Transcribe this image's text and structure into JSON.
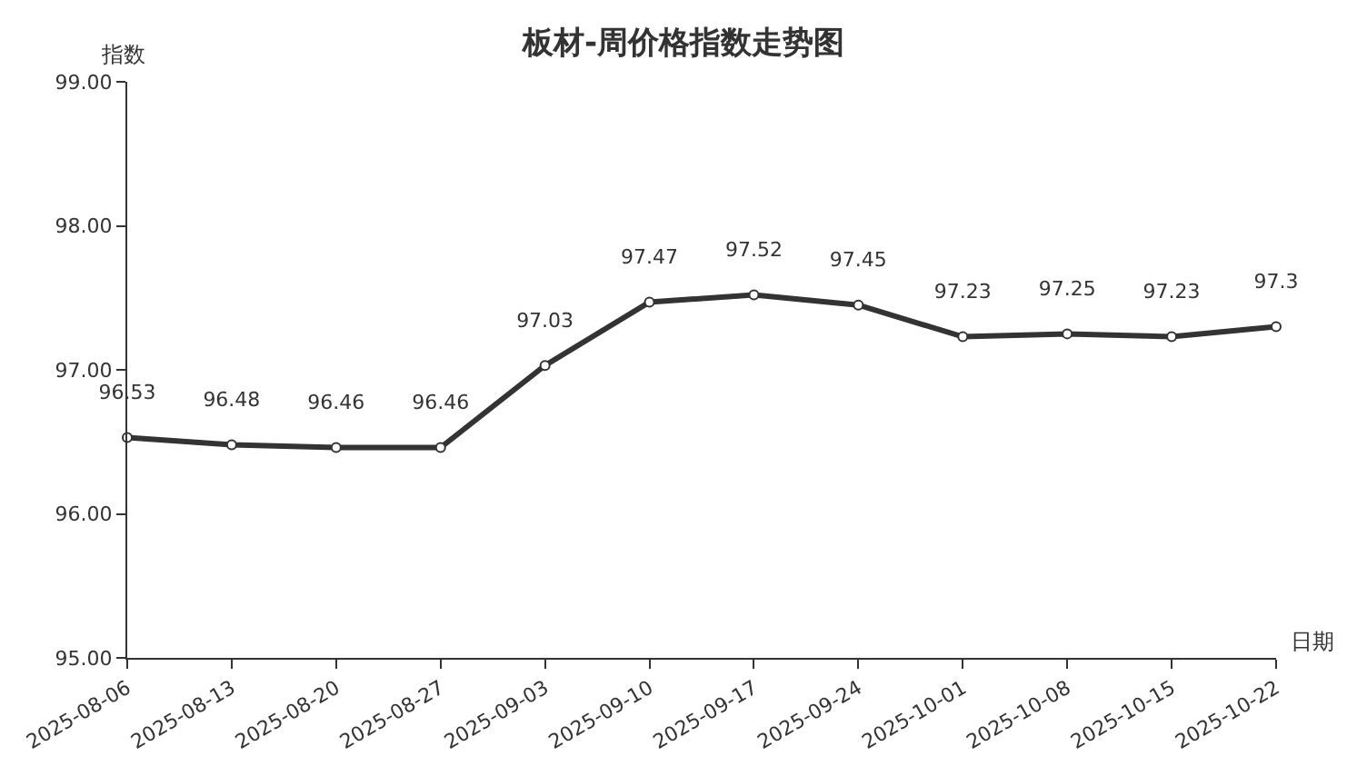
{
  "chart_data": {
    "type": "line",
    "title": "板材-周价格指数走势图",
    "xlabel": "日期",
    "ylabel": "指数",
    "categories": [
      "2025-08-06",
      "2025-08-13",
      "2025-08-20",
      "2025-08-27",
      "2025-09-03",
      "2025-09-10",
      "2025-09-17",
      "2025-09-24",
      "2025-10-01",
      "2025-10-08",
      "2025-10-15",
      "2025-10-22"
    ],
    "series": [
      {
        "color": "#333333",
        "values": [
          96.53,
          96.48,
          96.46,
          96.46,
          97.03,
          97.47,
          97.52,
          97.45,
          97.23,
          97.25,
          97.23,
          97.3
        ]
      }
    ],
    "ylim": [
      95,
      99
    ],
    "yticks": [
      {
        "value": 95,
        "label": "95.00"
      },
      {
        "value": 96,
        "label": "96.00"
      },
      {
        "value": 97,
        "label": "97.00"
      },
      {
        "value": 98,
        "label": "98.00"
      },
      {
        "value": 99,
        "label": "99.00"
      }
    ],
    "data_labels": true,
    "marker": "circle",
    "line_style": "solid",
    "legend": false
  }
}
